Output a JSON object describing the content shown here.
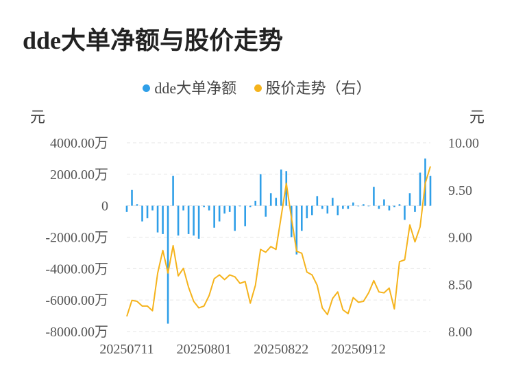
{
  "title": "dde大单净额与股价走势",
  "legend": [
    {
      "label": "dde大单净额",
      "color": "#2f9fe8"
    },
    {
      "label": "股价走势（右）",
      "color": "#f5b31c"
    }
  ],
  "chart_data": {
    "type": "bar+line",
    "title": "dde大单净额与股价走势",
    "left_axis": {
      "unit": "元",
      "ylim": [
        -8000,
        4000
      ],
      "ticks": [
        4000,
        2000,
        0,
        -2000,
        -4000,
        -6000,
        -8000
      ],
      "tick_labels": [
        "4000.00万",
        "2000.00万",
        "0",
        "-2000.00万",
        "-4000.00万",
        "-6000.00万",
        "-8000.00万"
      ]
    },
    "right_axis": {
      "unit": "元",
      "ylim": [
        8.0,
        10.0
      ],
      "ticks": [
        10.0,
        9.5,
        9.0,
        8.5,
        8.0
      ],
      "tick_labels": [
        "10.00",
        "9.50",
        "9.00",
        "8.50",
        "8.00"
      ]
    },
    "x_tick_labels": [
      {
        "index": 0,
        "label": "20250711"
      },
      {
        "index": 15,
        "label": "20250801"
      },
      {
        "index": 30,
        "label": "20250822"
      },
      {
        "index": 45,
        "label": "20250912"
      }
    ],
    "grid": true,
    "legend_position": "top",
    "series": [
      {
        "name": "dde大单净额",
        "type": "bar",
        "color": "#2f9fe8",
        "values": [
          -400,
          1000,
          100,
          -1000,
          -800,
          -300,
          -1700,
          -1800,
          -7500,
          1900,
          -1900,
          -300,
          -1800,
          -1900,
          -2100,
          -100,
          -300,
          -1400,
          -1000,
          -500,
          -400,
          -1600,
          0,
          -1300,
          -100,
          300,
          2000,
          -700,
          800,
          500,
          2300,
          2200,
          -2000,
          -3100,
          -1600,
          -800,
          -600,
          600,
          -200,
          -500,
          500,
          -600,
          -200,
          -200,
          200,
          0,
          100,
          0,
          1200,
          -200,
          400,
          -300,
          -100,
          100,
          -900,
          800,
          -400,
          2100,
          3000,
          1900
        ]
      },
      {
        "name": "股价走势（右）",
        "type": "line",
        "color": "#f5b31c",
        "values": [
          8.16,
          8.33,
          8.32,
          8.27,
          8.27,
          8.22,
          8.62,
          8.86,
          8.62,
          8.91,
          8.59,
          8.67,
          8.47,
          8.32,
          8.25,
          8.27,
          8.38,
          8.56,
          8.6,
          8.55,
          8.6,
          8.58,
          8.51,
          8.53,
          8.3,
          8.49,
          8.87,
          8.84,
          8.9,
          8.87,
          9.22,
          9.57,
          9.2,
          8.85,
          8.83,
          8.63,
          8.6,
          8.49,
          8.25,
          8.18,
          8.35,
          8.42,
          8.23,
          8.19,
          8.36,
          8.31,
          8.32,
          8.41,
          8.54,
          8.42,
          8.41,
          8.46,
          8.24,
          8.74,
          8.76,
          9.13,
          8.95,
          9.11,
          9.57,
          9.75
        ]
      }
    ]
  }
}
